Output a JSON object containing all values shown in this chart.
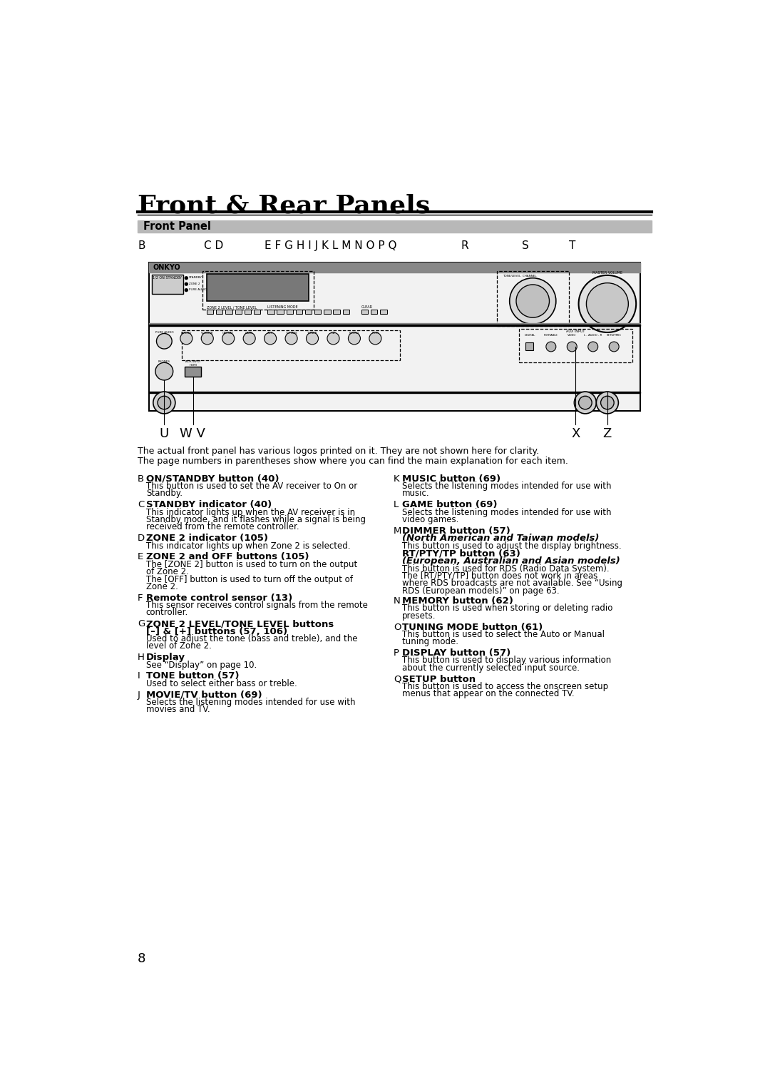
{
  "title": "Front & Rear Panels",
  "subtitle": "Front Panel",
  "bg_color": "#ffffff",
  "intro_line1": "The actual front panel has various logos printed on it. They are not shown here for clarity.",
  "intro_line2": "The page numbers in parentheses show where you can find the main explanation for each item.",
  "left_items": [
    {
      "letter": "B",
      "heading": "ON/STANDBY button (40)",
      "body": "This button is used to set the AV receiver to On or\nStandby."
    },
    {
      "letter": "C",
      "heading": "STANDBY indicator (40)",
      "body": "This indicator lights up when the AV receiver is in\nStandby mode, and it flashes while a signal is being\nreceived from the remote controller."
    },
    {
      "letter": "D",
      "heading": "ZONE 2 indicator (105)",
      "body": "This indicator lights up when Zone 2 is selected."
    },
    {
      "letter": "E",
      "heading": "ZONE 2 and OFF buttons (105)",
      "body": "The [ZONE 2] button is used to turn on the output\nof Zone 2.\nThe [OFF] button is used to turn off the output of\nZone 2."
    },
    {
      "letter": "F",
      "heading": "Remote control sensor (13)",
      "body": "This sensor receives control signals from the remote\ncontroller."
    },
    {
      "letter": "G",
      "heading": "ZONE 2 LEVEL/TONE LEVEL buttons\n[–] & [+] buttons (57, 106)",
      "body": "Used to adjust the tone (bass and treble), and the\nlevel of Zone 2."
    },
    {
      "letter": "H",
      "heading": "Display",
      "body": "See “Display” on page 10."
    },
    {
      "letter": "I",
      "heading": "TONE button (57)",
      "body": "Used to select either bass or treble."
    },
    {
      "letter": "J",
      "heading": "MOVIE/TV button (69)",
      "body": "Selects the listening modes intended for use with\nmovies and TV."
    }
  ],
  "right_items": [
    {
      "letter": "K",
      "heading": "MUSIC button (69)",
      "body": "Selects the listening modes intended for use with\nmusic."
    },
    {
      "letter": "L",
      "heading": "GAME button (69)",
      "body": "Selects the listening modes intended for use with\nvideo games."
    },
    {
      "letter": "M",
      "heading": "DIMMER button (57)",
      "subheading1": "(North American and Taiwan models)",
      "body1": "This button is used to adjust the display brightness.",
      "subheading2": "RT/PTY/TP button (63)",
      "subheading3": "(European, Australian and Asian models)",
      "body2": "This button is used for RDS (Radio Data System).\nThe [RT/PTY/TP] button does not work in areas\nwhere RDS broadcasts are not available. See “Using\nRDS (European models)” on page 63."
    },
    {
      "letter": "N",
      "heading": "MEMORY button (62)",
      "body": "This button is used when storing or deleting radio\npresets."
    },
    {
      "letter": "O",
      "heading": "TUNING MODE button (61)",
      "body": "This button is used to select the Auto or Manual\ntuning mode."
    },
    {
      "letter": "P",
      "heading": "DISPLAY button (57)",
      "body": "This button is used to display various information\nabout the currently selected input source."
    },
    {
      "letter": "Q",
      "heading": "SETUP button",
      "body": "This button is used to access the onscreen setup\nmenus that appear on the connected TV."
    }
  ],
  "page_number": "8"
}
